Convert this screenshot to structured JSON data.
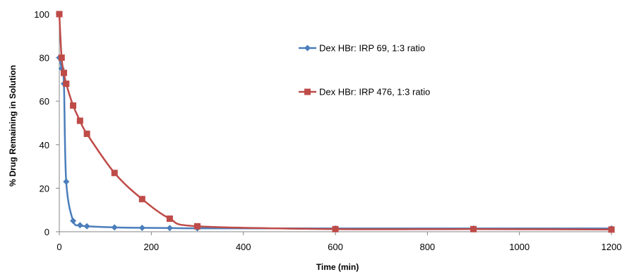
{
  "chart_data": {
    "type": "line",
    "title": "",
    "xlabel": "Time (min)",
    "ylabel": "% Drug Remaining in Solution",
    "xlim": [
      0,
      1200
    ],
    "ylim": [
      0,
      100
    ],
    "xticks": [
      0,
      200,
      400,
      600,
      800,
      1000,
      1200
    ],
    "yticks": [
      0,
      20,
      40,
      60,
      80,
      100
    ],
    "grid": false,
    "legend_position": "top-right",
    "series": [
      {
        "name": "Dex HBr: IRP 69, 1:3 ratio",
        "color": "#4a7ebb",
        "marker": "diamond",
        "x": [
          0,
          5,
          10,
          15,
          30,
          45,
          60,
          120,
          180,
          240,
          300,
          600,
          900,
          1200
        ],
        "y": [
          80,
          75,
          68,
          23,
          5,
          3,
          2.5,
          2,
          1.8,
          1.7,
          1.6,
          1.5,
          1.5,
          1.5
        ]
      },
      {
        "name": "Dex HBr: IRP 476, 1:3 ratio",
        "color": "#be4b48",
        "marker": "square",
        "x": [
          0,
          5,
          10,
          15,
          30,
          45,
          60,
          120,
          180,
          240,
          300,
          600,
          900,
          1200
        ],
        "y": [
          100,
          80,
          73,
          68,
          58,
          51,
          45,
          27,
          15,
          6,
          2.5,
          1.2,
          1.2,
          1
        ]
      }
    ]
  }
}
